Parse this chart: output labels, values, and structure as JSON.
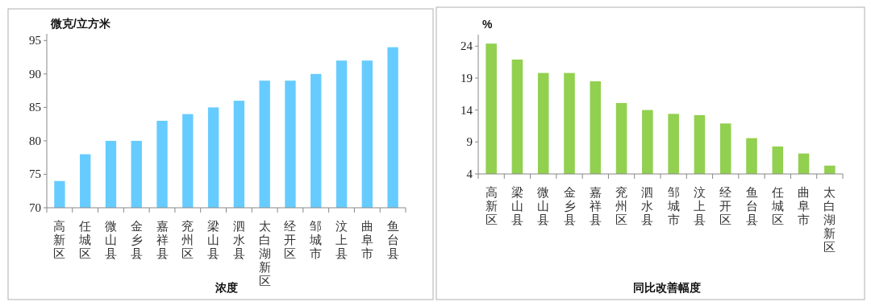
{
  "chart_data": [
    {
      "type": "bar",
      "ylabel": "微克/立方米",
      "xlabel": "浓度",
      "categories": [
        "高新区",
        "任城区",
        "微山县",
        "金乡县",
        "嘉祥县",
        "兖州区",
        "梁山县",
        "泗水县",
        "太白湖新区",
        "经开区",
        "邹城市",
        "汶上县",
        "曲阜市",
        "鱼台县"
      ],
      "series": [
        {
          "color": "#66ccff",
          "values": [
            74,
            78,
            80,
            80,
            83,
            84,
            85,
            86,
            89,
            89,
            90,
            92,
            92,
            94
          ]
        }
      ],
      "ylim": [
        70,
        96
      ],
      "yticks": [
        70,
        75,
        80,
        85,
        90,
        95
      ]
    },
    {
      "type": "bar",
      "ylabel": "%",
      "xlabel": "同比改善幅度",
      "categories": [
        "高新区",
        "梁山县",
        "微山县",
        "金乡县",
        "嘉祥县",
        "兖州区",
        "泗水县",
        "邹城市",
        "汶上县",
        "经开区",
        "鱼台县",
        "任城区",
        "曲阜市",
        "太白湖新区"
      ],
      "series": [
        {
          "color": "#92d050",
          "values": [
            24.4,
            21.9,
            19.8,
            19.8,
            18.5,
            15.1,
            14.0,
            13.4,
            13.2,
            11.9,
            9.6,
            8.3,
            7.2,
            5.3
          ]
        }
      ],
      "ylim": [
        4,
        25.8
      ],
      "yticks": [
        4,
        9,
        14,
        19,
        24
      ]
    }
  ]
}
